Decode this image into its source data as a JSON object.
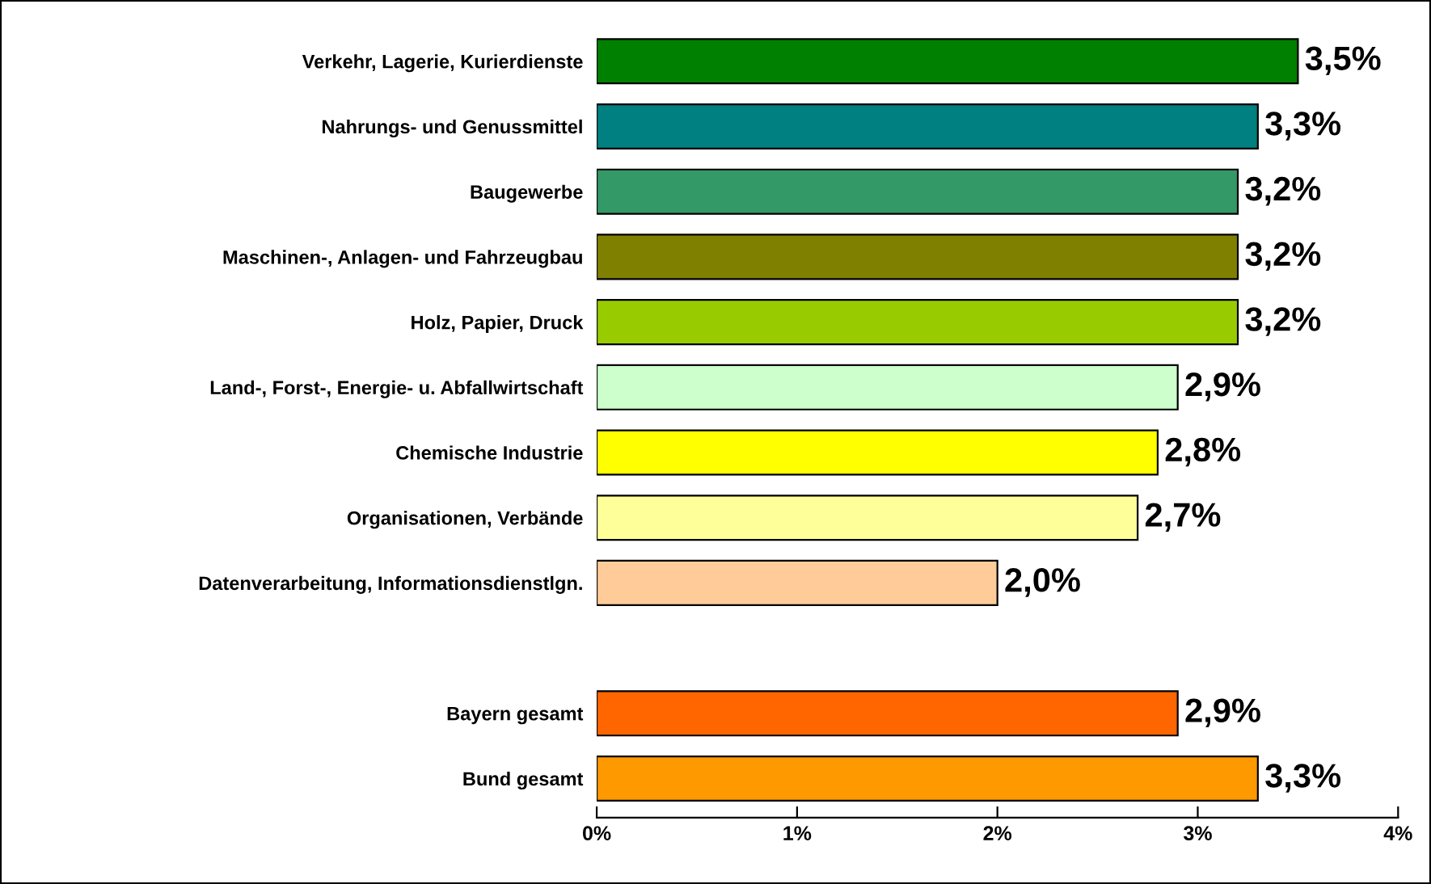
{
  "chart_data": {
    "type": "bar",
    "orientation": "horizontal",
    "categories": [
      "Verkehr, Lagerie, Kurierdienste",
      "Nahrungs- und Genussmittel",
      "Baugewerbe",
      "Maschinen-, Anlagen- und Fahrzeugbau",
      "Holz, Papier, Druck",
      "Land-, Forst-, Energie- u. Abfallwirtschaft",
      "Chemische Industrie",
      "Organisationen, Verbände",
      "Datenverarbeitung, Informationsdienstlgn.",
      null,
      "Bayern gesamt",
      "Bund gesamt"
    ],
    "values": [
      3.5,
      3.3,
      3.2,
      3.2,
      3.2,
      2.9,
      2.8,
      2.7,
      2.0,
      null,
      2.9,
      3.3
    ],
    "colors": [
      "#008000",
      "#008080",
      "#339966",
      "#808000",
      "#99cc00",
      "#ccffcc",
      "#ffff00",
      "#ffff99",
      "#ffcc99",
      "#ffffff",
      "#ff6600",
      "#ff9900"
    ],
    "value_labels": [
      "3,5%",
      "3,3%",
      "3,2%",
      "3,2%",
      "3,2%",
      "2,9%",
      "2,8%",
      "2,7%",
      "2,0%",
      null,
      "2,9%",
      "3,3%"
    ],
    "xlim": [
      0,
      4
    ],
    "xticks": [
      {
        "value": 0,
        "label": "0%"
      },
      {
        "value": 1,
        "label": "1%"
      },
      {
        "value": 2,
        "label": "2%"
      },
      {
        "value": 3,
        "label": "3%"
      },
      {
        "value": 4,
        "label": "4%"
      }
    ],
    "grid": false,
    "legend": false
  }
}
